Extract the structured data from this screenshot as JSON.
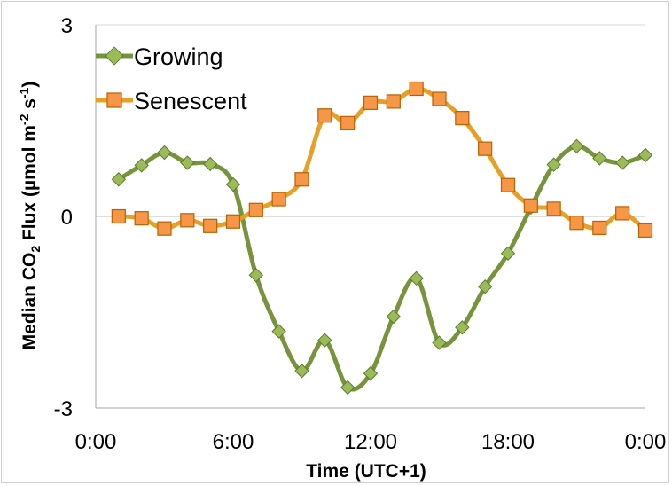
{
  "chart_data": {
    "type": "line",
    "title": "",
    "xlabel": "Time (UTC+1)",
    "ylabel": {
      "prefix": "Median CO",
      "sub": "2",
      "middle": " Flux (µmol m",
      "sup1": "-2",
      "mid2": " s",
      "sup2": "-1",
      "suffix": ")"
    },
    "xlim": [
      0,
      24
    ],
    "ylim": [
      -3,
      3
    ],
    "x_ticks": [
      0,
      6,
      12,
      18,
      24
    ],
    "x_tick_labels": [
      "0:00",
      "6:00",
      "12:00",
      "18:00",
      "0:00"
    ],
    "y_ticks": [
      -3,
      0,
      3
    ],
    "y_tick_labels": [
      "-3",
      "0",
      "3"
    ],
    "grid": "horizontal major",
    "legend": "top-left",
    "x": [
      1,
      2,
      3,
      4,
      5,
      6,
      7,
      8,
      9,
      10,
      11,
      12,
      13,
      14,
      15,
      16,
      17,
      18,
      19,
      20,
      21,
      22,
      23,
      24
    ],
    "series": [
      {
        "name": "Growing",
        "color": "#77933C",
        "fill": "#9BBB59",
        "marker": "diamond",
        "values": [
          0.58,
          0.8,
          1.0,
          0.84,
          0.82,
          0.5,
          -0.92,
          -1.8,
          -2.42,
          -1.94,
          -2.68,
          -2.46,
          -1.57,
          -0.97,
          -1.98,
          -1.74,
          -1.1,
          -0.58,
          0.14,
          0.81,
          1.1,
          0.91,
          0.84,
          0.96
        ]
      },
      {
        "name": "Senescent",
        "color": "#E6A028",
        "fill": "#F79646",
        "stroke": "#B76200",
        "marker": "square",
        "values": [
          0.0,
          -0.03,
          -0.19,
          -0.06,
          -0.15,
          -0.08,
          0.1,
          0.27,
          0.58,
          1.58,
          1.46,
          1.78,
          1.8,
          2.0,
          1.84,
          1.54,
          1.06,
          0.49,
          0.17,
          0.12,
          -0.1,
          -0.18,
          0.05,
          -0.22
        ]
      }
    ]
  }
}
